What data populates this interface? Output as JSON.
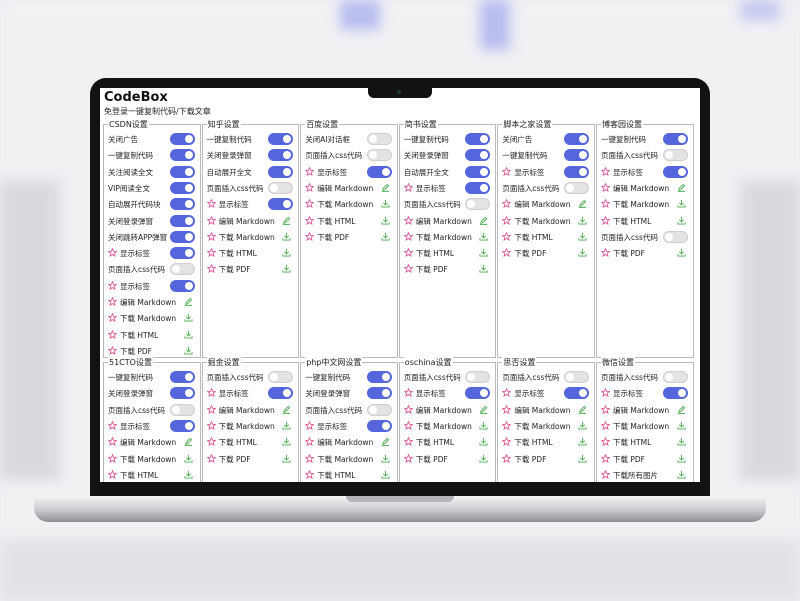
{
  "header": {
    "title": "CodeBox",
    "subtitle": "免登录一键复制代码/下载文章"
  },
  "panels": [
    {
      "title": "CSDN设置",
      "items": [
        {
          "label": "关闭广告",
          "on": true
        },
        {
          "label": "一键复制代码",
          "on": true
        },
        {
          "label": "关注阅读全文",
          "on": true
        },
        {
          "label": "VIP阅读全文",
          "on": true
        },
        {
          "label": "自动展开代码块",
          "on": true
        },
        {
          "label": "关闭登录弹窗",
          "on": true
        },
        {
          "label": "关闭跳转APP弹窗",
          "on": true
        },
        {
          "label": "显示标签",
          "on": true,
          "star": true
        },
        {
          "label": "页面插入css代码",
          "on": false
        },
        {
          "label": "显示标签",
          "on": true,
          "star": true
        },
        {
          "label": "编辑 Markdown",
          "icon": "edit"
        },
        {
          "label": "下载 Markdown",
          "icon": "download"
        },
        {
          "label": "下载 HTML",
          "icon": "download"
        },
        {
          "label": "下载 PDF",
          "icon": "download"
        }
      ]
    },
    {
      "title": "知乎设置",
      "items": [
        {
          "label": "一键复制代码",
          "on": true
        },
        {
          "label": "关闭登录弹窗",
          "on": true
        },
        {
          "label": "自动展开全文",
          "on": true
        },
        {
          "label": "页面插入css代码",
          "on": false
        },
        {
          "label": "显示标签",
          "on": true,
          "star": true
        },
        {
          "label": "编辑 Markdown",
          "icon": "edit"
        },
        {
          "label": "下载 Markdown",
          "icon": "download"
        },
        {
          "label": "下载 HTML",
          "icon": "download"
        },
        {
          "label": "下载 PDF",
          "icon": "download"
        }
      ]
    },
    {
      "title": "百度设置",
      "items": [
        {
          "label": "关闭AI对话框",
          "on": false
        },
        {
          "label": "页面插入css代码",
          "on": false
        },
        {
          "label": "显示标签",
          "on": true,
          "star": true
        },
        {
          "label": "编辑 Markdown",
          "icon": "edit"
        },
        {
          "label": "下载 Markdown",
          "icon": "download"
        },
        {
          "label": "下载 HTML",
          "icon": "download"
        },
        {
          "label": "下载 PDF",
          "icon": "download"
        }
      ]
    },
    {
      "title": "简书设置",
      "items": [
        {
          "label": "一键复制代码",
          "on": true
        },
        {
          "label": "关闭登录弹窗",
          "on": true
        },
        {
          "label": "自动展开全文",
          "on": true
        },
        {
          "label": "显示标签",
          "on": true,
          "star": true
        },
        {
          "label": "页面插入css代码",
          "on": false
        },
        {
          "label": "编辑 Markdown",
          "icon": "edit"
        },
        {
          "label": "下载 Markdown",
          "icon": "download"
        },
        {
          "label": "下载 HTML",
          "icon": "download"
        },
        {
          "label": "下载 PDF",
          "icon": "download"
        }
      ]
    },
    {
      "title": "脚本之家设置",
      "items": [
        {
          "label": "关闭广告",
          "on": true
        },
        {
          "label": "一键复制代码",
          "on": true
        },
        {
          "label": "显示标签",
          "on": true,
          "star": true
        },
        {
          "label": "页面插入css代码",
          "on": false
        },
        {
          "label": "编辑 Markdown",
          "icon": "edit"
        },
        {
          "label": "下载 Markdown",
          "icon": "download"
        },
        {
          "label": "下载 HTML",
          "icon": "download"
        },
        {
          "label": "下载 PDF",
          "icon": "download"
        }
      ]
    },
    {
      "title": "博客园设置",
      "items": [
        {
          "label": "一键复制代码",
          "on": true
        },
        {
          "label": "页面插入css代码",
          "on": false
        },
        {
          "label": "显示标签",
          "on": true,
          "star": true
        },
        {
          "label": "编辑 Markdown",
          "icon": "edit"
        },
        {
          "label": "下载 Markdown",
          "icon": "download"
        },
        {
          "label": "下载 HTML",
          "icon": "download"
        },
        {
          "label": "页面插入css代码",
          "on": false
        },
        {
          "label": "下载 PDF",
          "icon": "download"
        }
      ]
    },
    {
      "title": "51CTO设置",
      "items": [
        {
          "label": "一键复制代码",
          "on": true
        },
        {
          "label": "关闭登录弹窗",
          "on": true
        },
        {
          "label": "页面插入css代码",
          "on": false
        },
        {
          "label": "显示标签",
          "on": true,
          "star": true
        },
        {
          "label": "编辑 Markdown",
          "icon": "edit"
        },
        {
          "label": "下载 Markdown",
          "icon": "download"
        },
        {
          "label": "下载 HTML",
          "icon": "download"
        }
      ]
    },
    {
      "title": "掘金设置",
      "items": [
        {
          "label": "页面插入css代码",
          "on": false
        },
        {
          "label": "显示标签",
          "on": true,
          "star": true
        },
        {
          "label": "编辑 Markdown",
          "icon": "edit"
        },
        {
          "label": "下载 Markdown",
          "icon": "download"
        },
        {
          "label": "下载 HTML",
          "icon": "download"
        },
        {
          "label": "下载 PDF",
          "icon": "download"
        }
      ]
    },
    {
      "title": "php中文网设置",
      "items": [
        {
          "label": "一键复制代码",
          "on": true
        },
        {
          "label": "关闭登录弹窗",
          "on": true
        },
        {
          "label": "页面插入css代码",
          "on": false
        },
        {
          "label": "显示标签",
          "on": true,
          "star": true
        },
        {
          "label": "编辑 Markdown",
          "icon": "edit"
        },
        {
          "label": "下载 Markdown",
          "icon": "download"
        },
        {
          "label": "下载 HTML",
          "icon": "download"
        }
      ]
    },
    {
      "title": "oschina设置",
      "items": [
        {
          "label": "页面插入css代码",
          "on": false
        },
        {
          "label": "显示标签",
          "on": true,
          "star": true
        },
        {
          "label": "编辑 Markdown",
          "icon": "edit"
        },
        {
          "label": "下载 Markdown",
          "icon": "download"
        },
        {
          "label": "下载 HTML",
          "icon": "download"
        },
        {
          "label": "下载 PDF",
          "icon": "download"
        }
      ]
    },
    {
      "title": "思否设置",
      "items": [
        {
          "label": "页面插入css代码",
          "on": false
        },
        {
          "label": "显示标签",
          "on": true,
          "star": true
        },
        {
          "label": "编辑 Markdown",
          "icon": "edit"
        },
        {
          "label": "下载 Markdown",
          "icon": "download"
        },
        {
          "label": "下载 HTML",
          "icon": "download"
        },
        {
          "label": "下载 PDF",
          "icon": "download"
        }
      ]
    },
    {
      "title": "微信设置",
      "items": [
        {
          "label": "页面插入css代码",
          "on": false
        },
        {
          "label": "显示标签",
          "on": true,
          "star": true
        },
        {
          "label": "编辑 Markdown",
          "icon": "edit"
        },
        {
          "label": "下载 Markdown",
          "icon": "download"
        },
        {
          "label": "下载 HTML",
          "icon": "download"
        },
        {
          "label": "下载 PDF",
          "icon": "download"
        },
        {
          "label": "下载所有图片",
          "icon": "download"
        }
      ]
    }
  ]
}
